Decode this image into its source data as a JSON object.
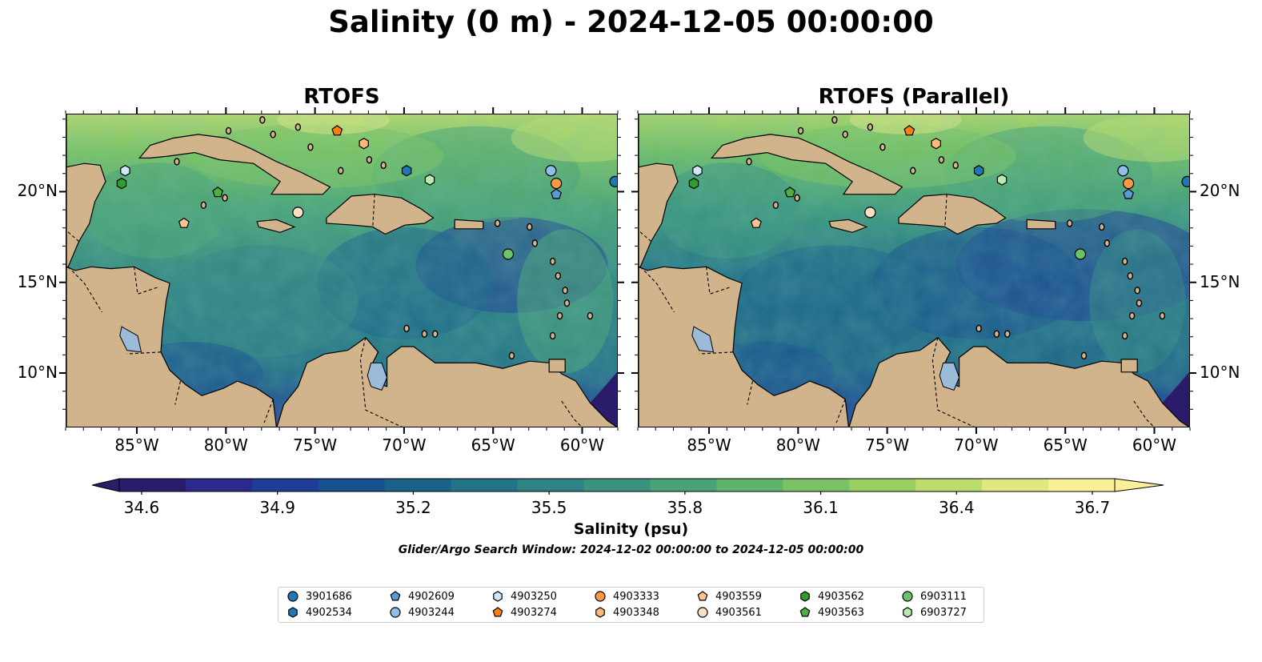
{
  "title": "Salinity (0 m) - 2024-12-05 00:00:00",
  "panels": [
    {
      "title": "RTOFS",
      "variant": "a"
    },
    {
      "title": "RTOFS (Parallel)",
      "variant": "b"
    }
  ],
  "lon_labels": [
    "85°W",
    "80°W",
    "75°W",
    "70°W",
    "65°W",
    "60°W"
  ],
  "lat_labels": [
    "20°N",
    "15°N",
    "10°N"
  ],
  "colorbar": {
    "title": "Salinity (psu)",
    "tick_labels": [
      "34.6",
      "34.9",
      "35.2",
      "35.5",
      "35.8",
      "36.1",
      "36.4",
      "36.7"
    ],
    "colormap": "haline"
  },
  "search_window": "Glider/Argo Search Window: 2024-12-02 00:00:00 to 2024-12-05 00:00:00",
  "colors": {
    "land": "#d2b48c",
    "lakes": "#9bbcd9",
    "deep_low": "#2a1b6b"
  },
  "legend": [
    {
      "label": "3901686",
      "marker": "circle",
      "color": "#1f77b4"
    },
    {
      "label": "4902534",
      "marker": "hexagon",
      "color": "#1f77b4"
    },
    {
      "label": "4902609",
      "marker": "pentagon",
      "color": "#5a9bd5"
    },
    {
      "label": "4903244",
      "marker": "circle",
      "color": "#8fbfe8"
    },
    {
      "label": "4903250",
      "marker": "hexagon",
      "color": "#cfe7f8"
    },
    {
      "label": "4903274",
      "marker": "pentagon",
      "color": "#ff7f0e"
    },
    {
      "label": "4903333",
      "marker": "circle",
      "color": "#fb9a45"
    },
    {
      "label": "4903348",
      "marker": "hexagon",
      "color": "#fdb97a"
    },
    {
      "label": "4903559",
      "marker": "pentagon",
      "color": "#fdc48f"
    },
    {
      "label": "4903561",
      "marker": "circle",
      "color": "#fde0c4"
    },
    {
      "label": "4903562",
      "marker": "hexagon",
      "color": "#2ca02c"
    },
    {
      "label": "4903563",
      "marker": "pentagon",
      "color": "#4caf3f"
    },
    {
      "label": "6903111",
      "marker": "circle",
      "color": "#6cc36a"
    },
    {
      "label": "6903727",
      "marker": "hexagon",
      "color": "#b9eab0"
    }
  ],
  "floats": [
    {
      "id": "3901686",
      "lon": -58.2,
      "lat": 20.6
    },
    {
      "id": "4902534",
      "lon": -69.9,
      "lat": 21.2
    },
    {
      "id": "4902609",
      "lon": -61.5,
      "lat": 19.9
    },
    {
      "id": "4903244",
      "lon": -61.8,
      "lat": 21.2
    },
    {
      "id": "4903250",
      "lon": -85.7,
      "lat": 21.2
    },
    {
      "id": "4903274",
      "lon": -73.8,
      "lat": 23.4
    },
    {
      "id": "4903333",
      "lon": -61.5,
      "lat": 20.5
    },
    {
      "id": "4903348",
      "lon": -72.3,
      "lat": 22.7
    },
    {
      "id": "4903559",
      "lon": -82.4,
      "lat": 18.3
    },
    {
      "id": "4903561",
      "lon": -76.0,
      "lat": 18.9
    },
    {
      "id": "4903562",
      "lon": -85.9,
      "lat": 20.5
    },
    {
      "id": "4903563",
      "lon": -80.5,
      "lat": 20.0
    },
    {
      "id": "6903111",
      "lon": -64.2,
      "lat": 16.6
    },
    {
      "id": "6903727",
      "lon": -68.6,
      "lat": 20.7
    }
  ]
}
